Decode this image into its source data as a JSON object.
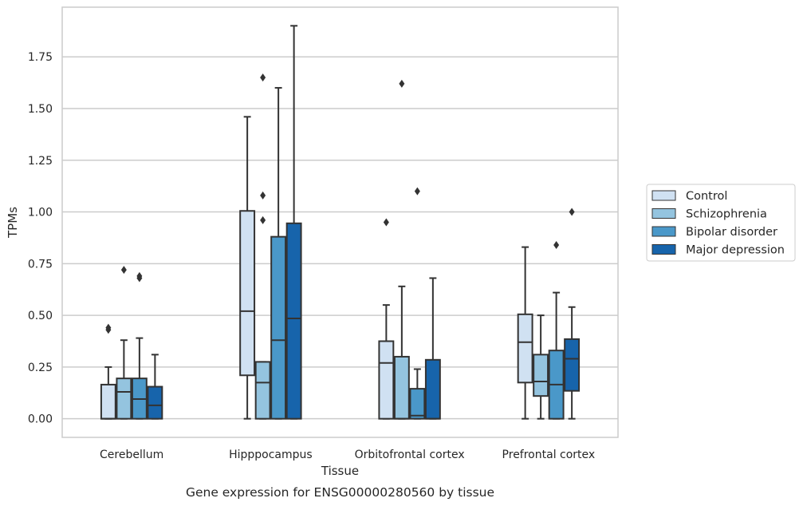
{
  "chart_data": {
    "type": "box",
    "title": "",
    "caption": "Gene expression for ENSG00000280560 by tissue",
    "xlabel": "Tissue",
    "ylabel": "TPMs",
    "ylim": [
      -0.09,
      1.99
    ],
    "yticks": [
      0.0,
      0.25,
      0.5,
      0.75,
      1.0,
      1.25,
      1.5,
      1.75
    ],
    "ytick_labels": [
      "0.00",
      "0.25",
      "0.50",
      "0.75",
      "1.00",
      "1.25",
      "1.50",
      "1.75"
    ],
    "grid": "horizontal",
    "legend_position": "right",
    "categories": [
      "Cerebellum",
      "Hipppocampus",
      "Orbitofrontal cortex",
      "Prefrontal cortex"
    ],
    "series": [
      {
        "name": "Control",
        "color": "#d0e1f2",
        "boxes": [
          {
            "whislo": 0.0,
            "q1": 0.0,
            "med": 0.0,
            "q3": 0.165,
            "whishi": 0.25,
            "fliers": [
              0.43,
              0.44
            ]
          },
          {
            "whislo": 0.0,
            "q1": 0.21,
            "med": 0.52,
            "q3": 1.005,
            "whishi": 1.46,
            "fliers": []
          },
          {
            "whislo": 0.0,
            "q1": 0.0,
            "med": 0.27,
            "q3": 0.375,
            "whishi": 0.55,
            "fliers": [
              0.95
            ]
          },
          {
            "whislo": 0.0,
            "q1": 0.175,
            "med": 0.37,
            "q3": 0.505,
            "whishi": 0.83,
            "fliers": []
          }
        ]
      },
      {
        "name": "Schizophrenia",
        "color": "#94c4df",
        "boxes": [
          {
            "whislo": 0.0,
            "q1": 0.0,
            "med": 0.13,
            "q3": 0.195,
            "whishi": 0.38,
            "fliers": [
              0.72
            ]
          },
          {
            "whislo": 0.0,
            "q1": 0.0,
            "med": 0.175,
            "q3": 0.275,
            "whishi": 0.275,
            "fliers": [
              0.96,
              1.08,
              1.65
            ]
          },
          {
            "whislo": 0.0,
            "q1": 0.0,
            "med": 0.0,
            "q3": 0.3,
            "whishi": 0.64,
            "fliers": [
              1.62
            ]
          },
          {
            "whislo": 0.0,
            "q1": 0.11,
            "med": 0.18,
            "q3": 0.31,
            "whishi": 0.5,
            "fliers": []
          }
        ]
      },
      {
        "name": "Bipolar disorder",
        "color": "#4a98c9",
        "boxes": [
          {
            "whislo": 0.0,
            "q1": 0.0,
            "med": 0.095,
            "q3": 0.195,
            "whishi": 0.39,
            "fliers": [
              0.68,
              0.69
            ]
          },
          {
            "whislo": 0.0,
            "q1": 0.0,
            "med": 0.38,
            "q3": 0.88,
            "whishi": 1.6,
            "fliers": []
          },
          {
            "whislo": 0.0,
            "q1": 0.0,
            "med": 0.015,
            "q3": 0.145,
            "whishi": 0.24,
            "fliers": [
              1.1
            ]
          },
          {
            "whislo": 0.0,
            "q1": 0.0,
            "med": 0.165,
            "q3": 0.33,
            "whishi": 0.61,
            "fliers": [
              0.84
            ]
          }
        ]
      },
      {
        "name": "Major depression",
        "color": "#1764ab",
        "boxes": [
          {
            "whislo": 0.0,
            "q1": 0.0,
            "med": 0.065,
            "q3": 0.155,
            "whishi": 0.31,
            "fliers": []
          },
          {
            "whislo": 0.0,
            "q1": 0.0,
            "med": 0.485,
            "q3": 0.945,
            "whishi": 1.9,
            "fliers": []
          },
          {
            "whislo": 0.0,
            "q1": 0.0,
            "med": 0.0,
            "q3": 0.285,
            "whishi": 0.68,
            "fliers": []
          },
          {
            "whislo": 0.0,
            "q1": 0.135,
            "med": 0.29,
            "q3": 0.385,
            "whishi": 0.54,
            "fliers": [
              1.0
            ]
          }
        ]
      }
    ]
  }
}
